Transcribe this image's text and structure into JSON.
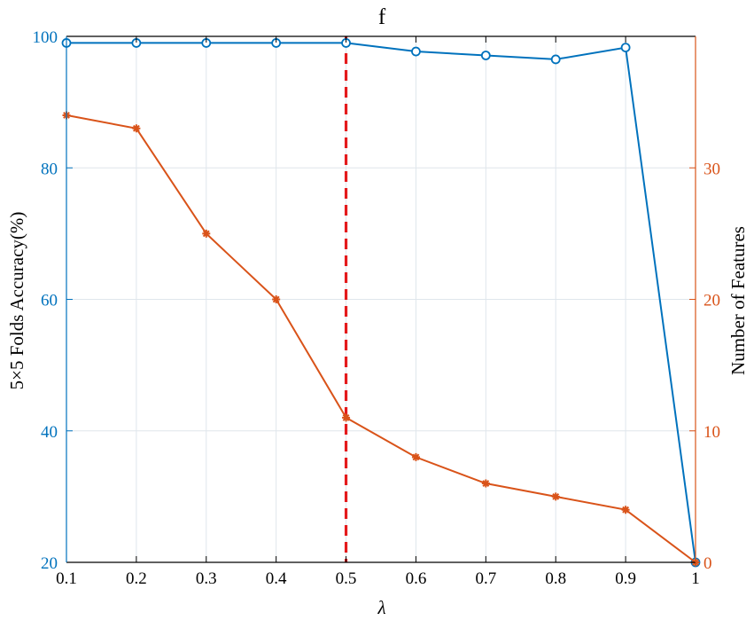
{
  "chart_data": {
    "type": "line",
    "title": "f",
    "xlabel": "λ",
    "ylabel_left": "5×5 Folds Accuracy(%)",
    "ylabel_right": "Number of Features",
    "xlim": [
      0.1,
      1
    ],
    "ylim_left": [
      20,
      100
    ],
    "ylim_right": [
      0,
      40
    ],
    "x_ticks": [
      "0.1",
      "0.2",
      "0.3",
      "0.4",
      "0.5",
      "0.6",
      "0.7",
      "0.8",
      "0.9",
      "1"
    ],
    "y_left_ticks": [
      "20",
      "40",
      "60",
      "80",
      "100"
    ],
    "y_right_ticks": [
      "0",
      "10",
      "20",
      "30"
    ],
    "grid": true,
    "vline_x": 0.5,
    "series": [
      {
        "axis": "left",
        "marker": "circle",
        "color": "#0072BD",
        "x": [
          0.1,
          0.2,
          0.3,
          0.4,
          0.5,
          0.6,
          0.7,
          0.8,
          0.9,
          1.0
        ],
        "values": [
          99,
          99,
          99,
          99,
          99,
          97.7,
          97.1,
          96.5,
          98.3,
          20
        ]
      },
      {
        "axis": "right",
        "marker": "star",
        "color": "#D95319",
        "x": [
          0.1,
          0.2,
          0.3,
          0.4,
          0.5,
          0.6,
          0.7,
          0.8,
          0.9,
          1.0
        ],
        "values": [
          34,
          33,
          25,
          20,
          11,
          8,
          6,
          5,
          4,
          0
        ]
      }
    ],
    "colors": {
      "left_axis": "#0072BD",
      "right_axis": "#D95319",
      "vline": "#E41A1C",
      "grid": "#DFE6EC"
    }
  }
}
